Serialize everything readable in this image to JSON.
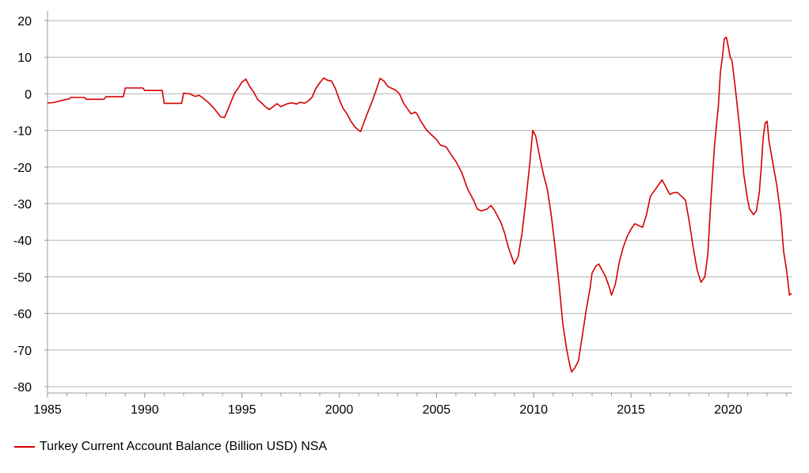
{
  "chart_data": {
    "type": "line",
    "title": "",
    "xlabel": "",
    "ylabel": "",
    "xlim": [
      1985,
      2023.3
    ],
    "ylim": [
      -80,
      20
    ],
    "yticks": [
      20,
      10,
      0,
      -10,
      -20,
      -30,
      -40,
      -50,
      -60,
      -70,
      -80
    ],
    "xticks": [
      1985,
      1990,
      1995,
      2000,
      2005,
      2010,
      2015,
      2020
    ],
    "grid": "horizontal",
    "legend_position": "bottom-left",
    "colors": {
      "series": "#d40000",
      "grid": "#b3b3b3",
      "axis": "#999999"
    },
    "series": [
      {
        "name": "Turkey Current Account Balance (Billion USD) NSA",
        "points": [
          [
            1985.0,
            -2.5
          ],
          [
            1985.3,
            -2.4
          ],
          [
            1985.6,
            -2.0
          ],
          [
            1985.9,
            -1.6
          ],
          [
            1986.1,
            -1.4
          ],
          [
            1986.2,
            -1.0
          ],
          [
            1986.9,
            -1.0
          ],
          [
            1987.0,
            -1.5
          ],
          [
            1987.9,
            -1.5
          ],
          [
            1988.0,
            -0.8
          ],
          [
            1988.9,
            -0.8
          ],
          [
            1989.0,
            1.6
          ],
          [
            1989.9,
            1.6
          ],
          [
            1990.0,
            0.9
          ],
          [
            1990.9,
            0.9
          ],
          [
            1991.0,
            -2.6
          ],
          [
            1991.9,
            -2.6
          ],
          [
            1992.0,
            0.2
          ],
          [
            1992.3,
            0.0
          ],
          [
            1992.6,
            -0.7
          ],
          [
            1992.8,
            -0.4
          ],
          [
            1993.0,
            -1.2
          ],
          [
            1993.3,
            -2.5
          ],
          [
            1993.6,
            -4.2
          ],
          [
            1993.9,
            -6.3
          ],
          [
            1994.1,
            -6.5
          ],
          [
            1994.3,
            -4.0
          ],
          [
            1994.6,
            0.0
          ],
          [
            1994.8,
            1.5
          ],
          [
            1995.0,
            3.2
          ],
          [
            1995.2,
            4.0
          ],
          [
            1995.4,
            2.0
          ],
          [
            1995.6,
            0.5
          ],
          [
            1995.8,
            -1.5
          ],
          [
            1996.0,
            -2.5
          ],
          [
            1996.2,
            -3.5
          ],
          [
            1996.4,
            -4.3
          ],
          [
            1996.6,
            -3.5
          ],
          [
            1996.8,
            -2.7
          ],
          [
            1997.0,
            -3.5
          ],
          [
            1997.2,
            -3.0
          ],
          [
            1997.4,
            -2.6
          ],
          [
            1997.6,
            -2.5
          ],
          [
            1997.8,
            -2.8
          ],
          [
            1998.0,
            -2.3
          ],
          [
            1998.2,
            -2.6
          ],
          [
            1998.4,
            -2.0
          ],
          [
            1998.6,
            -1.0
          ],
          [
            1998.8,
            1.5
          ],
          [
            1999.0,
            3.0
          ],
          [
            1999.2,
            4.3
          ],
          [
            1999.4,
            3.7
          ],
          [
            1999.6,
            3.5
          ],
          [
            1999.8,
            1.5
          ],
          [
            2000.0,
            -1.5
          ],
          [
            2000.2,
            -4.0
          ],
          [
            2000.4,
            -5.5
          ],
          [
            2000.6,
            -7.5
          ],
          [
            2000.8,
            -9.0
          ],
          [
            2001.0,
            -10.0
          ],
          [
            2001.1,
            -10.3
          ],
          [
            2001.4,
            -6.0
          ],
          [
            2001.7,
            -2.0
          ],
          [
            2001.9,
            1.0
          ],
          [
            2002.1,
            4.2
          ],
          [
            2002.3,
            3.5
          ],
          [
            2002.5,
            2.0
          ],
          [
            2002.7,
            1.5
          ],
          [
            2002.9,
            1.0
          ],
          [
            2003.1,
            0.0
          ],
          [
            2003.3,
            -2.5
          ],
          [
            2003.5,
            -4.0
          ],
          [
            2003.7,
            -5.5
          ],
          [
            2003.9,
            -5.0
          ],
          [
            2004.0,
            -5.5
          ],
          [
            2004.2,
            -7.5
          ],
          [
            2004.5,
            -10.0
          ],
          [
            2004.8,
            -11.5
          ],
          [
            2005.0,
            -12.5
          ],
          [
            2005.2,
            -14.0
          ],
          [
            2005.5,
            -14.5
          ],
          [
            2005.8,
            -17.0
          ],
          [
            2006.0,
            -18.5
          ],
          [
            2006.3,
            -21.5
          ],
          [
            2006.6,
            -26.0
          ],
          [
            2006.9,
            -29.0
          ],
          [
            2007.1,
            -31.5
          ],
          [
            2007.3,
            -32.0
          ],
          [
            2007.6,
            -31.5
          ],
          [
            2007.8,
            -30.5
          ],
          [
            2008.0,
            -32.0
          ],
          [
            2008.3,
            -35.0
          ],
          [
            2008.5,
            -38.0
          ],
          [
            2008.7,
            -42.0
          ],
          [
            2008.9,
            -45.0
          ],
          [
            2009.0,
            -46.5
          ],
          [
            2009.2,
            -44.5
          ],
          [
            2009.4,
            -38.0
          ],
          [
            2009.6,
            -29.0
          ],
          [
            2009.8,
            -19.0
          ],
          [
            2009.95,
            -10.0
          ],
          [
            2010.1,
            -11.5
          ],
          [
            2010.3,
            -17.0
          ],
          [
            2010.5,
            -22.0
          ],
          [
            2010.7,
            -26.0
          ],
          [
            2010.9,
            -33.0
          ],
          [
            2011.1,
            -42.0
          ],
          [
            2011.3,
            -52.0
          ],
          [
            2011.5,
            -63.0
          ],
          [
            2011.7,
            -70.0
          ],
          [
            2011.85,
            -74.0
          ],
          [
            2011.95,
            -76.0
          ],
          [
            2012.1,
            -75.0
          ],
          [
            2012.3,
            -73.0
          ],
          [
            2012.5,
            -66.0
          ],
          [
            2012.7,
            -59.0
          ],
          [
            2012.9,
            -53.0
          ],
          [
            2013.0,
            -49.0
          ],
          [
            2013.2,
            -47.0
          ],
          [
            2013.35,
            -46.5
          ],
          [
            2013.5,
            -48.0
          ],
          [
            2013.7,
            -50.0
          ],
          [
            2013.9,
            -53.0
          ],
          [
            2014.0,
            -55.0
          ],
          [
            2014.2,
            -52.0
          ],
          [
            2014.4,
            -46.0
          ],
          [
            2014.6,
            -42.0
          ],
          [
            2014.8,
            -39.0
          ],
          [
            2015.0,
            -37.0
          ],
          [
            2015.2,
            -35.5
          ],
          [
            2015.4,
            -36.0
          ],
          [
            2015.6,
            -36.5
          ],
          [
            2015.8,
            -33.0
          ],
          [
            2016.0,
            -28.0
          ],
          [
            2016.2,
            -26.5
          ],
          [
            2016.4,
            -25.0
          ],
          [
            2016.6,
            -23.5
          ],
          [
            2016.8,
            -25.5
          ],
          [
            2017.0,
            -27.5
          ],
          [
            2017.2,
            -27.0
          ],
          [
            2017.4,
            -27.0
          ],
          [
            2017.6,
            -28.0
          ],
          [
            2017.8,
            -29.0
          ],
          [
            2018.0,
            -35.0
          ],
          [
            2018.2,
            -42.0
          ],
          [
            2018.4,
            -48.0
          ],
          [
            2018.6,
            -51.5
          ],
          [
            2018.8,
            -50.0
          ],
          [
            2018.95,
            -44.0
          ],
          [
            2019.1,
            -30.0
          ],
          [
            2019.3,
            -14.0
          ],
          [
            2019.5,
            -3.0
          ],
          [
            2019.6,
            6.0
          ],
          [
            2019.7,
            10.0
          ],
          [
            2019.8,
            15.0
          ],
          [
            2019.9,
            15.5
          ],
          [
            2020.0,
            13.0
          ],
          [
            2020.1,
            10.0
          ],
          [
            2020.2,
            9.0
          ],
          [
            2020.4,
            0.0
          ],
          [
            2020.6,
            -10.0
          ],
          [
            2020.8,
            -22.0
          ],
          [
            2021.0,
            -29.0
          ],
          [
            2021.1,
            -31.5
          ],
          [
            2021.3,
            -33.0
          ],
          [
            2021.45,
            -32.0
          ],
          [
            2021.6,
            -27.0
          ],
          [
            2021.7,
            -20.0
          ],
          [
            2021.8,
            -12.0
          ],
          [
            2021.9,
            -8.0
          ],
          [
            2022.0,
            -7.5
          ],
          [
            2022.1,
            -13.0
          ],
          [
            2022.3,
            -19.0
          ],
          [
            2022.5,
            -25.0
          ],
          [
            2022.7,
            -33.0
          ],
          [
            2022.85,
            -43.0
          ],
          [
            2023.0,
            -48.0
          ],
          [
            2023.15,
            -55.0
          ],
          [
            2023.25,
            -54.5
          ]
        ]
      }
    ]
  }
}
